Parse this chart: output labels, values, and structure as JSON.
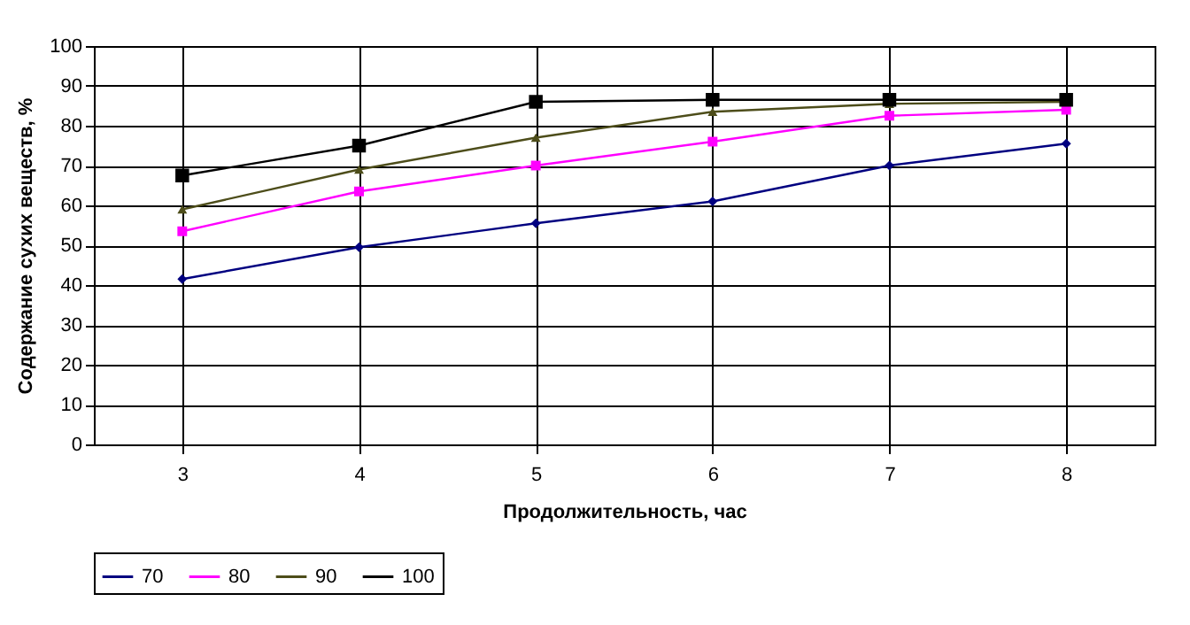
{
  "chart_data": {
    "type": "line",
    "xlabel": "Продолжительность, час",
    "ylabel": "Содержание сухих веществ, %",
    "categories": [
      "3",
      "4",
      "5",
      "6",
      "7",
      "8"
    ],
    "series": [
      {
        "name": "70",
        "color": "#000080",
        "marker": "diamond",
        "values": [
          41.5,
          49.5,
          55.5,
          61,
          70,
          75.5
        ]
      },
      {
        "name": "80",
        "color": "#ff00ff",
        "marker": "square",
        "values": [
          53.5,
          63.5,
          70,
          76,
          82.5,
          84
        ]
      },
      {
        "name": "90",
        "color": "#4d4d1a",
        "marker": "triangle",
        "values": [
          59,
          69,
          77,
          83.5,
          85.5,
          86
        ]
      },
      {
        "name": "100",
        "color": "#000000",
        "marker": "square",
        "values": [
          67.5,
          75,
          86,
          86.5,
          86.5,
          86.5
        ]
      }
    ],
    "ylim": [
      0,
      100
    ],
    "yticks": [
      0,
      10,
      20,
      30,
      40,
      50,
      60,
      70,
      80,
      90,
      100
    ],
    "grid": true,
    "legend": "bottom"
  }
}
